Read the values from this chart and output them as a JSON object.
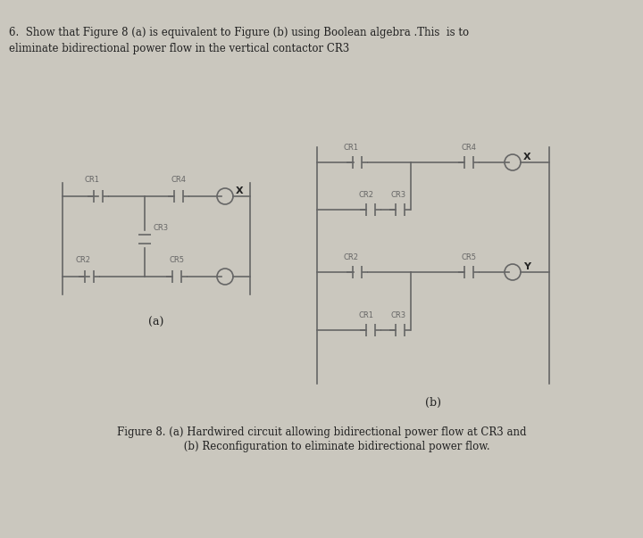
{
  "bg_color": "#cac7be",
  "line_color": "#666666",
  "text_color": "#222222",
  "title_text": "6.  Show that Figure 8 (a) is equivalent to Figure (b) using Boolean algebra .This  is to\neliminate bidirectional power flow in the vertical contactor CR3",
  "caption_line1": "Figure 8. (a) Hardwired circuit allowing bidirectional power flow at CR3 and",
  "caption_line2": "         (b) Reconfiguration to eliminate bidirectional power flow.",
  "label_a": "(a)",
  "label_b": "(b)",
  "fig_width": 7.2,
  "fig_height": 6.03,
  "dpi": 100
}
